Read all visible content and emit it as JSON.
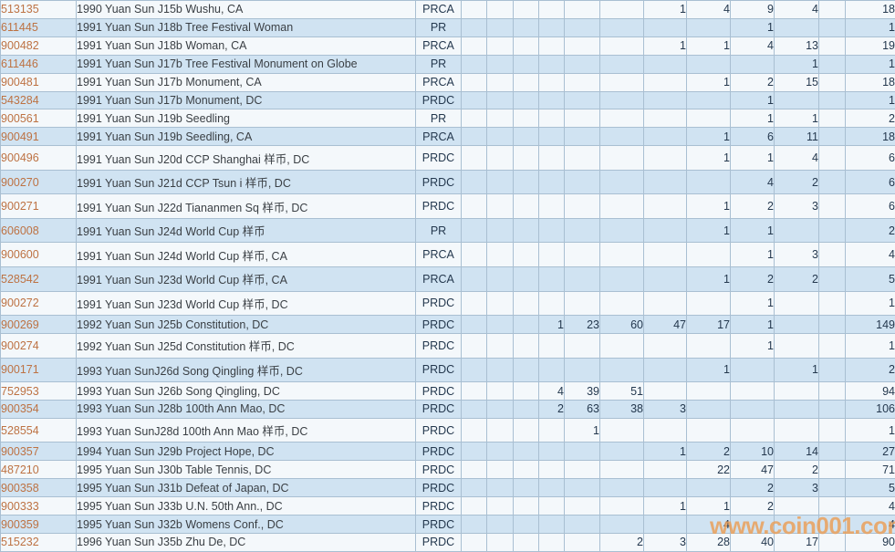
{
  "watermark": {
    "text": "www.coin001.com"
  },
  "colors": {
    "row_light": "#f4f8fb",
    "row_alt": "#d0e3f2",
    "border": "#a9bfd2",
    "id_text": "#bd7243",
    "body_text": "#3a3f44",
    "type_text": "#24384e",
    "watermark": "#ec9e55"
  },
  "table": {
    "rows": [
      {
        "id": "513135",
        "description": "1990 Yuan Sun J15b Wushu, CA",
        "type": "PRCA",
        "values": [
          "",
          "",
          "",
          "",
          "",
          "",
          "1",
          "4",
          "9",
          "4",
          "",
          "18"
        ]
      },
      {
        "id": "611445",
        "description": "1991 Yuan Sun J18b Tree Festival Woman",
        "type": "PR",
        "values": [
          "",
          "",
          "",
          "",
          "",
          "",
          "",
          "",
          "1",
          "",
          "",
          "1"
        ]
      },
      {
        "id": "900482",
        "description": "1991 Yuan Sun J18b Woman, CA",
        "type": "PRCA",
        "values": [
          "",
          "",
          "",
          "",
          "",
          "",
          "1",
          "1",
          "4",
          "13",
          "",
          "19"
        ]
      },
      {
        "id": "611446",
        "description": "1991 Yuan Sun J17b Tree Festival Monument on Globe",
        "type": "PR",
        "values": [
          "",
          "",
          "",
          "",
          "",
          "",
          "",
          "",
          "",
          "1",
          "",
          "1"
        ]
      },
      {
        "id": "900481",
        "description": "1991 Yuan Sun J17b Monument, CA",
        "type": "PRCA",
        "values": [
          "",
          "",
          "",
          "",
          "",
          "",
          "",
          "1",
          "2",
          "15",
          "",
          "18"
        ]
      },
      {
        "id": "543284",
        "description": "1991 Yuan Sun J17b Monument, DC",
        "type": "PRDC",
        "values": [
          "",
          "",
          "",
          "",
          "",
          "",
          "",
          "",
          "1",
          "",
          "",
          "1"
        ]
      },
      {
        "id": "900561",
        "description": "1991 Yuan Sun J19b Seedling",
        "type": "PR",
        "values": [
          "",
          "",
          "",
          "",
          "",
          "",
          "",
          "",
          "1",
          "1",
          "",
          "2"
        ]
      },
      {
        "id": "900491",
        "description": "1991 Yuan Sun J19b Seedling, CA",
        "type": "PRCA",
        "values": [
          "",
          "",
          "",
          "",
          "",
          "",
          "",
          "1",
          "6",
          "11",
          "",
          "18"
        ]
      },
      {
        "id": "900496",
        "description": "1991 Yuan Sun J20d CCP Shanghai 样币, DC",
        "type": "PRDC",
        "values": [
          "",
          "",
          "",
          "",
          "",
          "",
          "",
          "1",
          "1",
          "4",
          "",
          "6"
        ]
      },
      {
        "id": "900270",
        "description": "1991 Yuan Sun J21d CCP Tsun i 样币, DC",
        "type": "PRDC",
        "values": [
          "",
          "",
          "",
          "",
          "",
          "",
          "",
          "",
          "4",
          "2",
          "",
          "6"
        ]
      },
      {
        "id": "900271",
        "description": "1991 Yuan Sun J22d Tiananmen Sq 样币, DC",
        "type": "PRDC",
        "values": [
          "",
          "",
          "",
          "",
          "",
          "",
          "",
          "1",
          "2",
          "3",
          "",
          "6"
        ]
      },
      {
        "id": "606008",
        "description": "1991 Yuan Sun J24d World Cup 样币",
        "type": "PR",
        "values": [
          "",
          "",
          "",
          "",
          "",
          "",
          "",
          "1",
          "1",
          "",
          "",
          "2"
        ]
      },
      {
        "id": "900600",
        "description": "1991 Yuan Sun J24d World Cup 样币, CA",
        "type": "PRCA",
        "values": [
          "",
          "",
          "",
          "",
          "",
          "",
          "",
          "",
          "1",
          "3",
          "",
          "4"
        ]
      },
      {
        "id": "528542",
        "description": "1991 Yuan Sun J23d World Cup 样币, CA",
        "type": "PRCA",
        "values": [
          "",
          "",
          "",
          "",
          "",
          "",
          "",
          "1",
          "2",
          "2",
          "",
          "5"
        ]
      },
      {
        "id": "900272",
        "description": "1991 Yuan Sun J23d World Cup 样币, DC",
        "type": "PRDC",
        "values": [
          "",
          "",
          "",
          "",
          "",
          "",
          "",
          "",
          "1",
          "",
          "",
          "1"
        ]
      },
      {
        "id": "900269",
        "description": "1992 Yuan Sun J25b Constitution, DC",
        "type": "PRDC",
        "values": [
          "",
          "",
          "",
          "1",
          "23",
          "60",
          "47",
          "17",
          "1",
          "",
          "",
          "149"
        ]
      },
      {
        "id": "900274",
        "description": "1992 Yuan Sun J25d Constitution 样币, DC",
        "type": "PRDC",
        "values": [
          "",
          "",
          "",
          "",
          "",
          "",
          "",
          "",
          "1",
          "",
          "",
          "1"
        ]
      },
      {
        "id": "900171",
        "description": "1993 Yuan SunJ26d Song Qingling 样币, DC",
        "type": "PRDC",
        "values": [
          "",
          "",
          "",
          "",
          "",
          "",
          "",
          "1",
          "",
          "1",
          "",
          "2"
        ]
      },
      {
        "id": "752953",
        "description": "1993 Yuan Sun J26b Song Qingling, DC",
        "type": "PRDC",
        "values": [
          "",
          "",
          "",
          "4",
          "39",
          "51",
          "",
          "",
          "",
          "",
          "",
          "94"
        ]
      },
      {
        "id": "900354",
        "description": "1993 Yuan Sun J28b 100th Ann Mao, DC",
        "type": "PRDC",
        "values": [
          "",
          "",
          "",
          "2",
          "63",
          "38",
          "3",
          "",
          "",
          "",
          "",
          "106"
        ]
      },
      {
        "id": "528554",
        "description": "1993 Yuan SunJ28d 100th Ann Mao 样币, DC",
        "type": "PRDC",
        "values": [
          "",
          "",
          "",
          "",
          "1",
          "",
          "",
          "",
          "",
          "",
          "",
          "1"
        ]
      },
      {
        "id": "900357",
        "description": "1994 Yuan Sun J29b Project Hope, DC",
        "type": "PRDC",
        "values": [
          "",
          "",
          "",
          "",
          "",
          "",
          "1",
          "2",
          "10",
          "14",
          "",
          "27"
        ]
      },
      {
        "id": "487210",
        "description": "1995 Yuan Sun J30b Table Tennis, DC",
        "type": "PRDC",
        "values": [
          "",
          "",
          "",
          "",
          "",
          "",
          "",
          "22",
          "47",
          "2",
          "",
          "71"
        ]
      },
      {
        "id": "900358",
        "description": "1995 Yuan Sun J31b Defeat of Japan, DC",
        "type": "PRDC",
        "values": [
          "",
          "",
          "",
          "",
          "",
          "",
          "",
          "",
          "2",
          "3",
          "",
          "5"
        ]
      },
      {
        "id": "900333",
        "description": "1995 Yuan Sun J33b U.N. 50th Ann., DC",
        "type": "PRDC",
        "values": [
          "",
          "",
          "",
          "",
          "",
          "",
          "1",
          "1",
          "2",
          "",
          "",
          "4"
        ]
      },
      {
        "id": "900359",
        "description": "1995 Yuan Sun J32b Womens Conf., DC",
        "type": "PRDC",
        "values": [
          "",
          "",
          "",
          "",
          "",
          "",
          "",
          "4",
          "",
          "",
          "",
          "4"
        ]
      },
      {
        "id": "515232",
        "description": "1996 Yuan Sun J35b Zhu De, DC",
        "type": "PRDC",
        "values": [
          "",
          "",
          "",
          "",
          "",
          "2",
          "3",
          "28",
          "40",
          "17",
          "",
          "90"
        ]
      }
    ]
  }
}
